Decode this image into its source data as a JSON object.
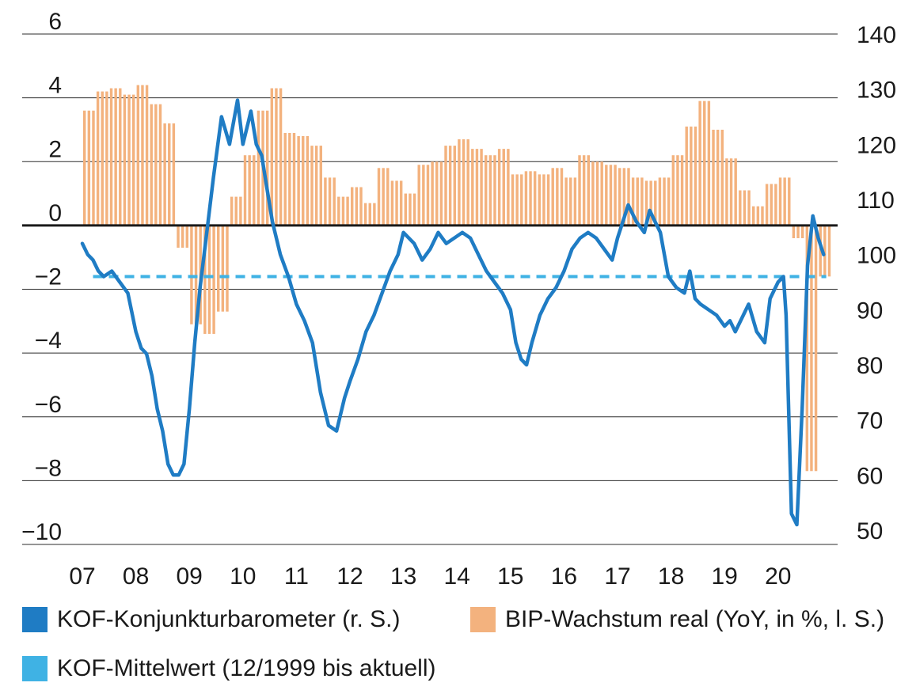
{
  "colors": {
    "baro": "#1f7cc4",
    "gdp": "#f3b27e",
    "mean": "#3fb2e4",
    "zero": "#1a1a1a",
    "grid": "#2b2b2b",
    "text": "#1a1a1a"
  },
  "legend": {
    "baro": "KOF-Konjunkturbarometer (r. S.)",
    "gdp": "BIP-Wachstum real (YoY, in %, l. S.)",
    "mean": "KOF-Mittelwert (12/1999 bis aktuell)"
  },
  "chart_data": {
    "type": "line",
    "x_ticks": [
      "07",
      "08",
      "09",
      "10",
      "11",
      "12",
      "13",
      "14",
      "15",
      "16",
      "17",
      "18",
      "19",
      "20"
    ],
    "left_axis": {
      "ylim": [
        -10,
        6
      ],
      "ticks": [
        "6",
        "4",
        "2",
        "0",
        "−2",
        "−4",
        "−6",
        "−8",
        "−10"
      ],
      "tick_values": [
        6,
        4,
        2,
        0,
        -2,
        -4,
        -6,
        -8,
        -10
      ]
    },
    "right_axis": {
      "ylim": [
        50,
        140
      ],
      "ticks": [
        "140",
        "130",
        "120",
        "110",
        "100",
        "90",
        "80",
        "70",
        "60",
        "50"
      ],
      "tick_values": [
        140,
        130,
        120,
        110,
        100,
        90,
        80,
        70,
        60,
        50
      ]
    },
    "gdp_bars": {
      "name": "BIP-Wachstum real (YoY, in %, l. S.)",
      "axis": "left",
      "x_start": 2007.0,
      "period": 0.25,
      "values": [
        3.6,
        4.2,
        4.3,
        4.1,
        4.4,
        3.8,
        3.2,
        -0.7,
        -3.1,
        -3.4,
        -2.7,
        0.9,
        2.2,
        3.6,
        4.3,
        2.9,
        2.8,
        2.5,
        1.5,
        0.9,
        1.2,
        0.7,
        1.8,
        1.4,
        1.0,
        1.9,
        2.0,
        2.5,
        2.7,
        2.4,
        2.2,
        2.4,
        1.6,
        1.7,
        1.6,
        1.8,
        1.5,
        2.2,
        2.0,
        1.9,
        1.8,
        1.5,
        1.4,
        1.5,
        2.2,
        3.1,
        3.9,
        3.0,
        2.1,
        1.1,
        0.6,
        1.3,
        1.5,
        -0.4,
        -7.7,
        -1.6
      ]
    },
    "baro_series": {
      "name": "KOF-Konjunkturbarometer (r. S.)",
      "axis": "right",
      "x": [
        2007.0,
        2007.1,
        2007.2,
        2007.3,
        2007.4,
        2007.55,
        2007.7,
        2007.85,
        2008.0,
        2008.1,
        2008.2,
        2008.3,
        2008.4,
        2008.5,
        2008.6,
        2008.7,
        2008.8,
        2008.9,
        2009.0,
        2009.1,
        2009.2,
        2009.3,
        2009.45,
        2009.6,
        2009.75,
        2009.9,
        2010.0,
        2010.1,
        2010.15,
        2010.25,
        2010.35,
        2010.45,
        2010.55,
        2010.7,
        2010.85,
        2011.0,
        2011.15,
        2011.3,
        2011.45,
        2011.6,
        2011.75,
        2011.9,
        2012.0,
        2012.15,
        2012.3,
        2012.45,
        2012.6,
        2012.75,
        2012.9,
        2013.0,
        2013.1,
        2013.2,
        2013.35,
        2013.5,
        2013.65,
        2013.8,
        2013.95,
        2014.1,
        2014.25,
        2014.4,
        2014.55,
        2014.7,
        2014.85,
        2015.0,
        2015.1,
        2015.2,
        2015.3,
        2015.4,
        2015.55,
        2015.7,
        2015.85,
        2016.0,
        2016.15,
        2016.3,
        2016.45,
        2016.6,
        2016.75,
        2016.9,
        2017.0,
        2017.1,
        2017.2,
        2017.35,
        2017.5,
        2017.6,
        2017.7,
        2017.8,
        2017.95,
        2018.1,
        2018.25,
        2018.35,
        2018.45,
        2018.55,
        2018.7,
        2018.85,
        2019.0,
        2019.1,
        2019.2,
        2019.3,
        2019.45,
        2019.6,
        2019.75,
        2019.85,
        2020.0,
        2020.1,
        2020.15,
        2020.25,
        2020.35,
        2020.45,
        2020.55,
        2020.65,
        2020.75,
        2020.85
      ],
      "y": [
        102,
        100,
        99,
        97,
        96,
        97,
        95,
        93,
        86,
        83,
        82,
        78,
        72,
        68,
        62,
        60,
        60,
        62,
        72,
        84,
        94,
        102,
        114,
        125,
        120,
        128,
        120,
        124,
        126,
        120,
        118,
        112,
        106,
        100,
        96,
        91,
        88,
        84,
        75,
        69,
        68,
        74,
        77,
        81,
        86,
        89,
        93,
        97,
        100,
        104,
        103,
        102,
        99,
        101,
        104,
        102,
        103,
        104,
        103,
        100,
        97,
        95,
        93,
        90,
        84,
        81,
        80,
        84,
        89,
        92,
        94,
        97,
        101,
        103,
        104,
        103,
        101,
        99,
        103,
        106,
        109,
        106,
        104,
        108,
        106,
        104,
        96,
        94,
        93,
        97,
        92,
        91,
        90,
        89,
        87,
        88,
        86,
        88,
        91,
        86,
        84,
        92,
        95,
        96,
        89,
        53,
        51,
        72,
        98,
        107,
        103,
        100
      ]
    },
    "mean_series": {
      "name": "KOF-Mittelwert (12/1999 bis aktuell)",
      "axis": "right",
      "value": 96.0,
      "x_range": [
        2007.2,
        2020.9
      ]
    },
    "grid": true,
    "legend_position": "bottom"
  }
}
